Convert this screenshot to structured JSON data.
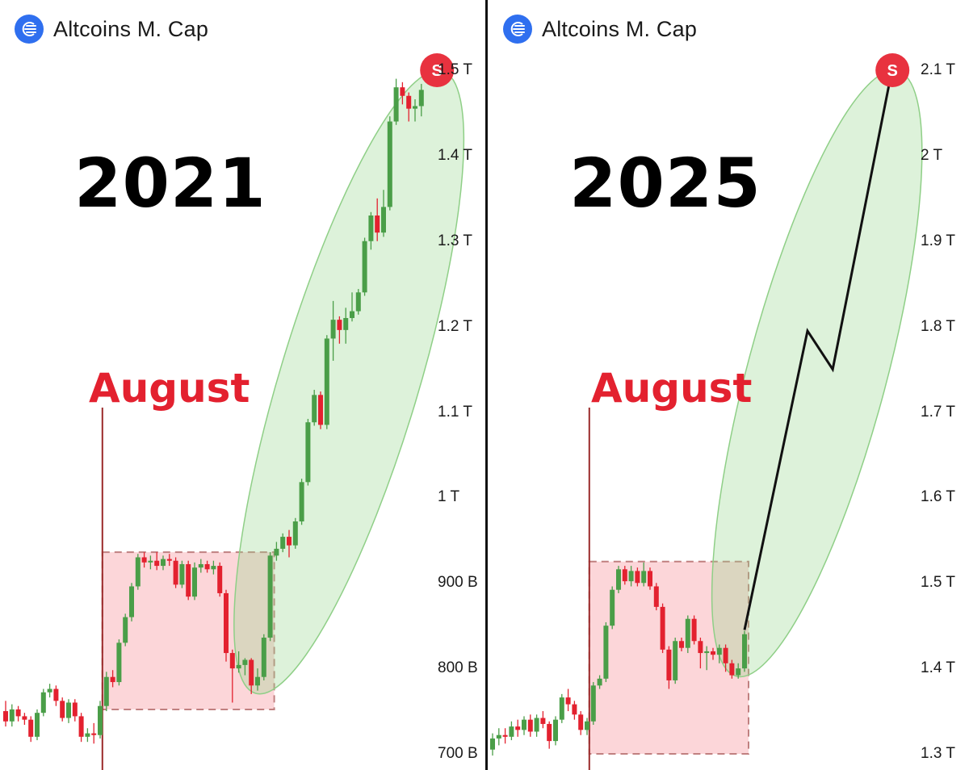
{
  "header": {
    "title": "Altcoins M. Cap",
    "logo_icon": "altcoin-logo-icon"
  },
  "colors": {
    "up": "#4a9e48",
    "down": "#e3212f",
    "zone_fill": "rgba(244,120,128,0.30)",
    "ellipse_fill": "rgba(150,215,140,0.32)",
    "signal": "#e8323f"
  },
  "chart_data": [
    {
      "type": "candlestick",
      "title": "2021",
      "series_name": "Altcoins M. Cap",
      "highlight_label": "August",
      "signal_label": "S",
      "y_unit": "T",
      "ylim": [
        0.7,
        1.5
      ],
      "yticks": [
        "700 B",
        "800 B",
        "900 B",
        "1 T",
        "1.1 T",
        "1.2 T",
        "1.3 T",
        "1.4 T",
        "1.5 T"
      ],
      "ytick_values": [
        0.7,
        0.8,
        0.9,
        1.0,
        1.1,
        1.2,
        1.3,
        1.4,
        1.5
      ],
      "august_zone": {
        "start_index": 16,
        "end_index": 42,
        "low": 0.752,
        "high": 0.936
      },
      "projection_ellipse": {
        "from_index": 40,
        "to_index": 69,
        "bottom": 0.78,
        "top": 1.49
      },
      "candles": [
        [
          0.75,
          0.738,
          0.762,
          0.732
        ],
        [
          0.738,
          0.752,
          0.758,
          0.732
        ],
        [
          0.752,
          0.744,
          0.756,
          0.738
        ],
        [
          0.744,
          0.74,
          0.748,
          0.734
        ],
        [
          0.74,
          0.72,
          0.744,
          0.714
        ],
        [
          0.72,
          0.748,
          0.752,
          0.716
        ],
        [
          0.748,
          0.772,
          0.776,
          0.744
        ],
        [
          0.772,
          0.776,
          0.782,
          0.766
        ],
        [
          0.776,
          0.762,
          0.78,
          0.756
        ],
        [
          0.762,
          0.742,
          0.766,
          0.738
        ],
        [
          0.742,
          0.76,
          0.764,
          0.736
        ],
        [
          0.76,
          0.744,
          0.764,
          0.738
        ],
        [
          0.744,
          0.72,
          0.748,
          0.714
        ],
        [
          0.72,
          0.724,
          0.73,
          0.714
        ],
        [
          0.724,
          0.722,
          0.736,
          0.712
        ],
        [
          0.722,
          0.756,
          0.762,
          0.718
        ],
        [
          0.756,
          0.79,
          0.796,
          0.75
        ],
        [
          0.79,
          0.784,
          0.798,
          0.778
        ],
        [
          0.784,
          0.83,
          0.834,
          0.78
        ],
        [
          0.83,
          0.86,
          0.864,
          0.826
        ],
        [
          0.86,
          0.896,
          0.9,
          0.855
        ],
        [
          0.896,
          0.93,
          0.934,
          0.892
        ],
        [
          0.93,
          0.924,
          0.936,
          0.918
        ],
        [
          0.924,
          0.926,
          0.932,
          0.916
        ],
        [
          0.926,
          0.92,
          0.936,
          0.915
        ],
        [
          0.92,
          0.928,
          0.932,
          0.915
        ],
        [
          0.928,
          0.926,
          0.934,
          0.92
        ],
        [
          0.926,
          0.898,
          0.93,
          0.894
        ],
        [
          0.898,
          0.922,
          0.926,
          0.894
        ],
        [
          0.922,
          0.884,
          0.926,
          0.88
        ],
        [
          0.884,
          0.918,
          0.924,
          0.88
        ],
        [
          0.918,
          0.922,
          0.928,
          0.912
        ],
        [
          0.922,
          0.916,
          0.926,
          0.912
        ],
        [
          0.916,
          0.92,
          0.926,
          0.91
        ],
        [
          0.92,
          0.888,
          0.924,
          0.884
        ],
        [
          0.888,
          0.818,
          0.892,
          0.808
        ],
        [
          0.818,
          0.8,
          0.822,
          0.76
        ],
        [
          0.8,
          0.804,
          0.82,
          0.795
        ],
        [
          0.804,
          0.81,
          0.812,
          0.792
        ],
        [
          0.81,
          0.78,
          0.812,
          0.77
        ],
        [
          0.78,
          0.79,
          0.8,
          0.774
        ],
        [
          0.79,
          0.836,
          0.84,
          0.786
        ],
        [
          0.836,
          0.932,
          0.936,
          0.832
        ],
        [
          0.932,
          0.94,
          0.948,
          0.926
        ],
        [
          0.94,
          0.954,
          0.958,
          0.936
        ],
        [
          0.954,
          0.944,
          0.962,
          0.93
        ],
        [
          0.944,
          0.972,
          0.976,
          0.94
        ],
        [
          0.972,
          1.018,
          1.022,
          0.968
        ],
        [
          1.018,
          1.088,
          1.092,
          1.014
        ],
        [
          1.088,
          1.12,
          1.126,
          1.084
        ],
        [
          1.12,
          1.085,
          1.124,
          1.08
        ],
        [
          1.085,
          1.186,
          1.19,
          1.08
        ],
        [
          1.186,
          1.208,
          1.23,
          1.16
        ],
        [
          1.208,
          1.196,
          1.212,
          1.18
        ],
        [
          1.196,
          1.21,
          1.222,
          1.18
        ],
        [
          1.21,
          1.218,
          1.24,
          1.206
        ],
        [
          1.218,
          1.24,
          1.244,
          1.214
        ],
        [
          1.24,
          1.3,
          1.304,
          1.236
        ],
        [
          1.3,
          1.33,
          1.334,
          1.29
        ],
        [
          1.33,
          1.31,
          1.35,
          1.3
        ],
        [
          1.31,
          1.34,
          1.36,
          1.305
        ],
        [
          1.34,
          1.44,
          1.446,
          1.336
        ],
        [
          1.44,
          1.48,
          1.49,
          1.436
        ],
        [
          1.48,
          1.47,
          1.486,
          1.46
        ],
        [
          1.47,
          1.455,
          1.474,
          1.44
        ],
        [
          1.455,
          1.458,
          1.466,
          1.44
        ],
        [
          1.458,
          1.477,
          1.484,
          1.446
        ]
      ]
    },
    {
      "type": "candlestick",
      "title": "2025",
      "series_name": "Altcoins M. Cap",
      "highlight_label": "August",
      "signal_label": "S",
      "y_unit": "T",
      "ylim": [
        1.3,
        2.1
      ],
      "yticks": [
        "1.3 T",
        "1.4 T",
        "1.5 T",
        "1.6 T",
        "1.7 T",
        "1.8 T",
        "1.9 T",
        "2 T",
        "2.1 T"
      ],
      "ytick_values": [
        1.3,
        1.4,
        1.5,
        1.6,
        1.7,
        1.8,
        1.9,
        2.0,
        2.1
      ],
      "august_zone": {
        "start_index": 16,
        "end_index": 40,
        "low": 1.3,
        "high": 1.525
      },
      "projection_ellipse": {
        "from_index": 39,
        "to_index": 64,
        "bottom": 1.4,
        "top": 2.09
      },
      "projection_path": [
        {
          "index": 40,
          "value": 1.445
        },
        {
          "index": 50,
          "value": 1.795
        },
        {
          "index": 54,
          "value": 1.75
        },
        {
          "index": 63,
          "value": 2.085
        }
      ],
      "candles": [
        [
          1.305,
          1.318,
          1.324,
          1.298
        ],
        [
          1.318,
          1.322,
          1.33,
          1.31
        ],
        [
          1.322,
          1.32,
          1.33,
          1.312
        ],
        [
          1.32,
          1.332,
          1.338,
          1.316
        ],
        [
          1.332,
          1.328,
          1.34,
          1.32
        ],
        [
          1.328,
          1.34,
          1.344,
          1.322
        ],
        [
          1.34,
          1.326,
          1.346,
          1.32
        ],
        [
          1.326,
          1.342,
          1.346,
          1.32
        ],
        [
          1.342,
          1.335,
          1.35,
          1.33
        ],
        [
          1.335,
          1.315,
          1.338,
          1.306
        ],
        [
          1.315,
          1.34,
          1.344,
          1.31
        ],
        [
          1.34,
          1.366,
          1.37,
          1.336
        ],
        [
          1.366,
          1.358,
          1.376,
          1.35
        ],
        [
          1.358,
          1.346,
          1.362,
          1.34
        ],
        [
          1.346,
          1.328,
          1.35,
          1.322
        ],
        [
          1.328,
          1.338,
          1.342,
          1.322
        ],
        [
          1.338,
          1.38,
          1.384,
          1.334
        ],
        [
          1.38,
          1.388,
          1.392,
          1.376
        ],
        [
          1.388,
          1.45,
          1.454,
          1.384
        ],
        [
          1.45,
          1.492,
          1.496,
          1.446
        ],
        [
          1.492,
          1.516,
          1.52,
          1.488
        ],
        [
          1.516,
          1.502,
          1.52,
          1.498
        ],
        [
          1.502,
          1.514,
          1.52,
          1.496
        ],
        [
          1.514,
          1.5,
          1.518,
          1.496
        ],
        [
          1.5,
          1.514,
          1.524,
          1.496
        ],
        [
          1.514,
          1.496,
          1.518,
          1.492
        ],
        [
          1.496,
          1.472,
          1.5,
          1.468
        ],
        [
          1.472,
          1.422,
          1.476,
          1.418
        ],
        [
          1.422,
          1.386,
          1.426,
          1.376
        ],
        [
          1.386,
          1.432,
          1.436,
          1.382
        ],
        [
          1.432,
          1.424,
          1.436,
          1.42
        ],
        [
          1.424,
          1.458,
          1.462,
          1.418
        ],
        [
          1.458,
          1.432,
          1.462,
          1.428
        ],
        [
          1.432,
          1.418,
          1.436,
          1.4
        ],
        [
          1.418,
          1.42,
          1.426,
          1.398
        ],
        [
          1.42,
          1.416,
          1.424,
          1.41
        ],
        [
          1.416,
          1.424,
          1.428,
          1.406
        ],
        [
          1.424,
          1.406,
          1.428,
          1.396
        ],
        [
          1.406,
          1.392,
          1.41,
          1.388
        ],
        [
          1.392,
          1.4,
          1.406,
          1.388
        ],
        [
          1.4,
          1.44,
          1.444,
          1.396
        ]
      ]
    }
  ]
}
